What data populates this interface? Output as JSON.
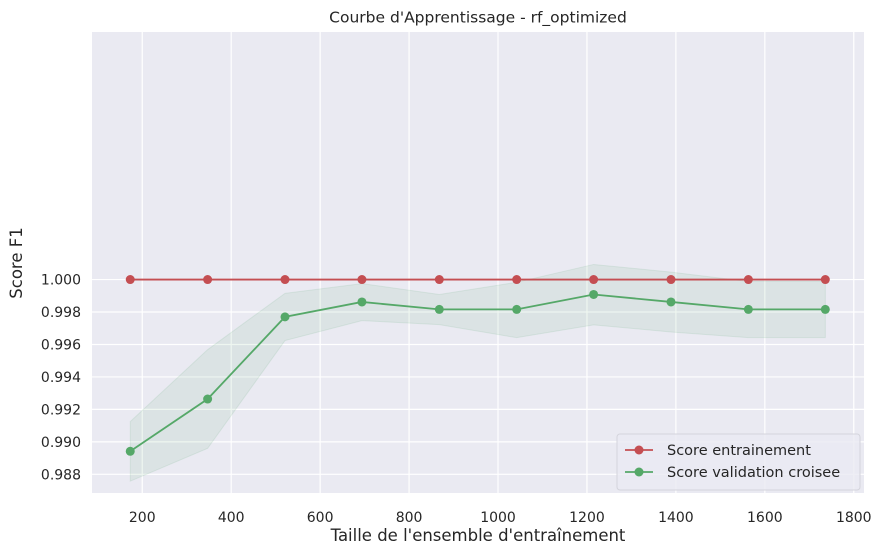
{
  "chart_data": {
    "type": "line",
    "title": "Courbe d'Apprentissage - rf_optimized",
    "xlabel": "Taille de l'ensemble d'entraînement",
    "ylabel": "Score F1",
    "xlim": [
      87,
      1823
    ],
    "ylim": [
      0.98685,
      1.01525
    ],
    "xticks": [
      200,
      400,
      600,
      800,
      1000,
      1200,
      1400,
      1600,
      1800
    ],
    "xtick_labels": [
      "200",
      "400",
      "600",
      "800",
      "1000",
      "1200",
      "1400",
      "1600",
      "1800"
    ],
    "yticks": [
      0.988,
      0.99,
      0.992,
      0.994,
      0.996,
      0.998,
      1.0
    ],
    "ytick_labels": [
      "0.988",
      "0.990",
      "0.992",
      "0.994",
      "0.996",
      "0.998",
      "1.000"
    ],
    "grid": true,
    "legend_position": "lower-right",
    "x": [
      173,
      347,
      521,
      694,
      868,
      1042,
      1215,
      1389,
      1563,
      1736
    ],
    "series": [
      {
        "name": "Score entrainement",
        "color": "#c44e52",
        "values": [
          1.0,
          1.0,
          1.0,
          1.0,
          1.0,
          1.0,
          1.0,
          1.0,
          1.0,
          1.0
        ],
        "band_lower": [
          1.0,
          1.0,
          1.0,
          1.0,
          1.0,
          1.0,
          1.0,
          1.0,
          1.0,
          1.0
        ],
        "band_upper": [
          1.0,
          1.0,
          1.0,
          1.0,
          1.0,
          1.0,
          1.0,
          1.0,
          1.0,
          1.0
        ]
      },
      {
        "name": "Score validation croisee",
        "color": "#55a868",
        "values": [
          0.98942,
          0.99264,
          0.9977,
          0.99862,
          0.99816,
          0.99816,
          0.99908,
          0.99862,
          0.99816,
          0.99816
        ],
        "band_lower": [
          0.98758,
          0.9896,
          0.99624,
          0.99747,
          0.99722,
          0.99642,
          0.99721,
          0.99677,
          0.99642,
          0.99642
        ],
        "band_upper": [
          0.99125,
          0.99568,
          0.99915,
          0.99975,
          0.99908,
          0.99983,
          1.00093,
          1.00046,
          0.99988,
          0.99988
        ]
      }
    ],
    "colors": {
      "plot_background": "#eaeaf2",
      "grid": "#ffffff",
      "text": "#262626"
    }
  }
}
